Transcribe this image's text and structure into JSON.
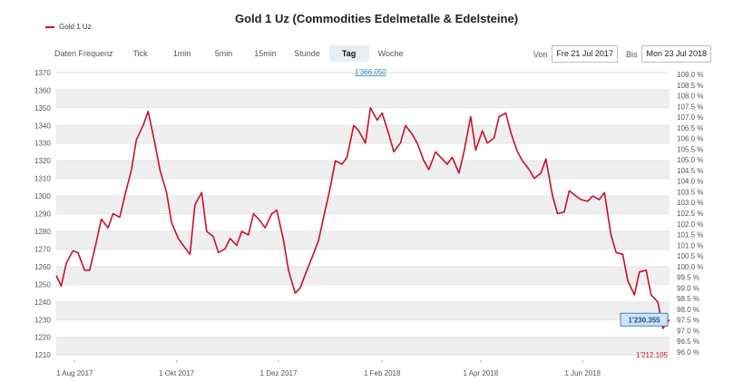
{
  "legend": {
    "label": "Gold 1 Uz",
    "color": "#c8102e"
  },
  "toolbar": {
    "frequency_label": "Daten Frequenz",
    "buttons": [
      {
        "label": "Tick",
        "active": false
      },
      {
        "label": "1min",
        "active": false
      },
      {
        "label": "5min",
        "active": false
      },
      {
        "label": "15min",
        "active": false
      },
      {
        "label": "Stunde",
        "active": false
      },
      {
        "label": "Tag",
        "active": true
      },
      {
        "label": "Woche",
        "active": false
      }
    ],
    "from_label": "Von",
    "from_value": "Fre 21 Jul 2017",
    "to_label": "Bis",
    "to_value": "Mon 23 Jul 2018"
  },
  "chart_data": {
    "type": "line",
    "title": "Gold 1 Uz (Commodities Edelmetalle & Edelsteine)",
    "xlabel": "",
    "ylabel": "",
    "ylim": [
      1207,
      1372
    ],
    "y_ticks": [
      1210,
      1220,
      1230,
      1240,
      1250,
      1260,
      1270,
      1280,
      1290,
      1300,
      1310,
      1320,
      1330,
      1340,
      1350,
      1360,
      1370
    ],
    "y2_ticks": [
      "96.0 %",
      "96.5 %",
      "97.0 %",
      "97.5 %",
      "98.0 %",
      "98.5 %",
      "99.0 %",
      "99.5 %",
      "100.0 %",
      "100.5 %",
      "101.0 %",
      "101.5 %",
      "102.0 %",
      "102.5 %",
      "103.0 %",
      "103.5 %",
      "104.0 %",
      "104.5 %",
      "105.0 %",
      "105.5 %",
      "106.0 %",
      "106.5 %",
      "107.0 %",
      "107.5 %",
      "108.0 %",
      "108.5 %",
      "109.0 %"
    ],
    "y2_range": [
      96.0,
      109.0
    ],
    "x_tick_labels": [
      "1 Aug 2017",
      "1 Okt 2017",
      "1 Dez 2017",
      "1 Feb 2018",
      "1 Apr 2018",
      "1 Jun 2018"
    ],
    "x_tick_dates": [
      "2017-08-01",
      "2017-10-01",
      "2017-12-01",
      "2018-02-01",
      "2018-04-01",
      "2018-06-01"
    ],
    "x_range": [
      "2017-07-21",
      "2018-07-23"
    ],
    "grid": true,
    "legend_position": "top-left",
    "annotations": {
      "max_label": "1'366.050",
      "min_label": "1'212.105",
      "last_label": "1'230.355"
    },
    "series": [
      {
        "name": "Gold 1 Uz",
        "color": "#c8102e",
        "points": [
          [
            "2017-07-21",
            1255
          ],
          [
            "2017-07-24",
            1249
          ],
          [
            "2017-07-27",
            1262
          ],
          [
            "2017-07-31",
            1269
          ],
          [
            "2017-08-03",
            1268
          ],
          [
            "2017-08-07",
            1258
          ],
          [
            "2017-08-10",
            1258
          ],
          [
            "2017-08-14",
            1274
          ],
          [
            "2017-08-17",
            1287
          ],
          [
            "2017-08-21",
            1282
          ],
          [
            "2017-08-24",
            1290
          ],
          [
            "2017-08-28",
            1288
          ],
          [
            "2017-08-31",
            1300
          ],
          [
            "2017-09-04",
            1315
          ],
          [
            "2017-09-07",
            1332
          ],
          [
            "2017-09-11",
            1340
          ],
          [
            "2017-09-14",
            1348
          ],
          [
            "2017-09-18",
            1330
          ],
          [
            "2017-09-21",
            1315
          ],
          [
            "2017-09-25",
            1302
          ],
          [
            "2017-09-28",
            1285
          ],
          [
            "2017-10-02",
            1276
          ],
          [
            "2017-10-05",
            1272
          ],
          [
            "2017-10-09",
            1267
          ],
          [
            "2017-10-12",
            1295
          ],
          [
            "2017-10-16",
            1302
          ],
          [
            "2017-10-19",
            1280
          ],
          [
            "2017-10-23",
            1277
          ],
          [
            "2017-10-26",
            1268
          ],
          [
            "2017-10-30",
            1270
          ],
          [
            "2017-11-02",
            1276
          ],
          [
            "2017-11-06",
            1272
          ],
          [
            "2017-11-09",
            1280
          ],
          [
            "2017-11-13",
            1278
          ],
          [
            "2017-11-16",
            1290
          ],
          [
            "2017-11-20",
            1286
          ],
          [
            "2017-11-23",
            1282
          ],
          [
            "2017-11-27",
            1290
          ],
          [
            "2017-11-30",
            1292
          ],
          [
            "2017-12-04",
            1275
          ],
          [
            "2017-12-07",
            1258
          ],
          [
            "2017-12-11",
            1245
          ],
          [
            "2017-12-14",
            1248
          ],
          [
            "2017-12-18",
            1258
          ],
          [
            "2017-12-21",
            1265
          ],
          [
            "2017-12-25",
            1275
          ],
          [
            "2017-12-28",
            1288
          ],
          [
            "2018-01-01",
            1305
          ],
          [
            "2018-01-04",
            1320
          ],
          [
            "2018-01-08",
            1318
          ],
          [
            "2018-01-11",
            1322
          ],
          [
            "2018-01-15",
            1340
          ],
          [
            "2018-01-18",
            1337
          ],
          [
            "2018-01-22",
            1330
          ],
          [
            "2018-01-25",
            1350
          ],
          [
            "2018-01-29",
            1343
          ],
          [
            "2018-02-01",
            1347
          ],
          [
            "2018-02-05",
            1335
          ],
          [
            "2018-02-08",
            1325
          ],
          [
            "2018-02-12",
            1330
          ],
          [
            "2018-02-15",
            1340
          ],
          [
            "2018-02-19",
            1335
          ],
          [
            "2018-02-22",
            1330
          ],
          [
            "2018-02-26",
            1320
          ],
          [
            "2018-03-01",
            1315
          ],
          [
            "2018-03-05",
            1325
          ],
          [
            "2018-03-08",
            1322
          ],
          [
            "2018-03-12",
            1318
          ],
          [
            "2018-03-15",
            1322
          ],
          [
            "2018-03-19",
            1313
          ],
          [
            "2018-03-22",
            1325
          ],
          [
            "2018-03-26",
            1345
          ],
          [
            "2018-03-29",
            1326
          ],
          [
            "2018-04-02",
            1337
          ],
          [
            "2018-04-05",
            1330
          ],
          [
            "2018-04-09",
            1333
          ],
          [
            "2018-04-12",
            1345
          ],
          [
            "2018-04-16",
            1347
          ],
          [
            "2018-04-19",
            1336
          ],
          [
            "2018-04-23",
            1325
          ],
          [
            "2018-04-26",
            1320
          ],
          [
            "2018-04-30",
            1315
          ],
          [
            "2018-05-03",
            1310
          ],
          [
            "2018-05-07",
            1313
          ],
          [
            "2018-05-10",
            1321
          ],
          [
            "2018-05-14",
            1300
          ],
          [
            "2018-05-17",
            1290
          ],
          [
            "2018-05-21",
            1291
          ],
          [
            "2018-05-24",
            1303
          ],
          [
            "2018-05-28",
            1300
          ],
          [
            "2018-05-31",
            1298
          ],
          [
            "2018-06-04",
            1297
          ],
          [
            "2018-06-07",
            1300
          ],
          [
            "2018-06-11",
            1298
          ],
          [
            "2018-06-14",
            1302
          ],
          [
            "2018-06-18",
            1278
          ],
          [
            "2018-06-21",
            1268
          ],
          [
            "2018-06-25",
            1267
          ],
          [
            "2018-06-28",
            1252
          ],
          [
            "2018-07-02",
            1244
          ],
          [
            "2018-07-05",
            1257
          ],
          [
            "2018-07-09",
            1258
          ],
          [
            "2018-07-12",
            1244
          ],
          [
            "2018-07-16",
            1240
          ],
          [
            "2018-07-19",
            1225
          ],
          [
            "2018-07-23",
            1230
          ]
        ]
      }
    ]
  }
}
